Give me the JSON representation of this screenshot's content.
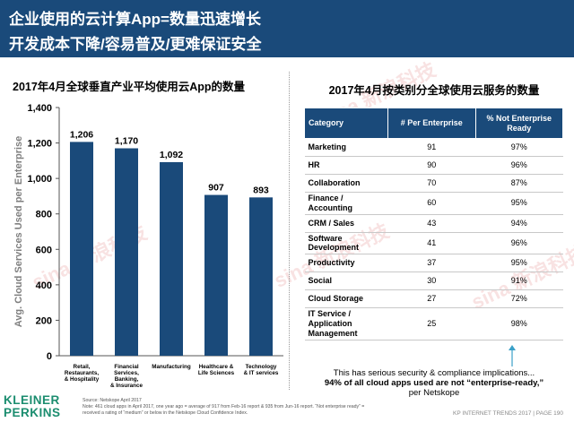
{
  "header": {
    "line1": "企业使用的云计算App=数量迅速增长",
    "line2": "开发成本下降/容易普及/更难保证安全"
  },
  "left_title": "2017年4月全球垂直产业平均使用云App的数量",
  "right_title": "2017年4月按类别分全球使用云服务的数量",
  "chart_data": {
    "type": "bar",
    "categories": [
      [
        "Retail,",
        "Restaurants,",
        "& Hospitality"
      ],
      [
        "Financial",
        "Services,",
        "Banking,",
        "& Insurance"
      ],
      [
        "Manufacturing"
      ],
      [
        "Healthcare &",
        "Life Sciences"
      ],
      [
        "Technology",
        "& IT services"
      ]
    ],
    "values": [
      1206,
      1170,
      1092,
      907,
      893
    ],
    "data_labels": [
      "1,206",
      "1,170",
      "1,092",
      "907",
      "893"
    ],
    "ylabel": "Avg. Cloud Services Used per Enterprise",
    "ylim": [
      0,
      1400
    ],
    "yticks": [
      "0",
      "200",
      "400",
      "600",
      "800",
      "1,000",
      "1,200",
      "1,400"
    ],
    "grid": false,
    "bar_color": "#1a4a7a"
  },
  "table": {
    "headers": [
      "Category",
      "# Per Enterprise",
      "% Not Enterprise Ready"
    ],
    "rows": [
      {
        "category": "Marketing",
        "per_enterprise": "91",
        "not_ready": "97%"
      },
      {
        "category": "HR",
        "per_enterprise": "90",
        "not_ready": "96%"
      },
      {
        "category": "Collaboration",
        "per_enterprise": "70",
        "not_ready": "87%"
      },
      {
        "category": "Finance / Accounting",
        "per_enterprise": "60",
        "not_ready": "95%"
      },
      {
        "category": "CRM / Sales",
        "per_enterprise": "43",
        "not_ready": "94%"
      },
      {
        "category": "Software Development",
        "per_enterprise": "41",
        "not_ready": "96%"
      },
      {
        "category": "Productivity",
        "per_enterprise": "37",
        "not_ready": "95%"
      },
      {
        "category": "Social",
        "per_enterprise": "30",
        "not_ready": "91%"
      },
      {
        "category": "Cloud Storage",
        "per_enterprise": "27",
        "not_ready": "72%"
      },
      {
        "category": "IT Service / Application Management",
        "per_enterprise": "25",
        "not_ready": "98%"
      }
    ]
  },
  "note": {
    "line1": "This has serious security & compliance implications...",
    "line2": "94% of all cloud apps used are not “enterprise-ready,”",
    "line3": "per Netskope"
  },
  "logo": {
    "line1": "KLEINER",
    "line2": "PERKINS"
  },
  "source": {
    "line1": "Source: Netskope April 2017",
    "line2": "Note: 461 cloud apps in April 2017, one year ago = average of 917 from Feb-16 report & 935 from Jun-16 report. “Not enterprise ready” =",
    "line3": "received a rating of “medium” or below in the Netskope Cloud Confidence Index."
  },
  "footer": "KP INTERNET TRENDS 2017  |  PAGE 190",
  "watermark": "sina 新浪科技",
  "accent_color": "#1a4a7a",
  "arrow_color": "#3aa0c8"
}
